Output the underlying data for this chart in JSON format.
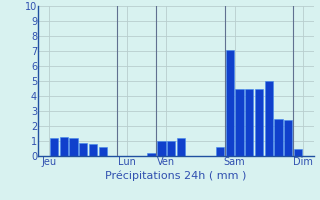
{
  "title": "Précipitations 24h ( mm )",
  "background_color": "#d8f2f0",
  "grid_color": "#b8cece",
  "bar_color": "#1040cc",
  "bar_edge_color": "#4488ee",
  "ylim": [
    0,
    10
  ],
  "yticks": [
    0,
    1,
    2,
    3,
    4,
    5,
    6,
    7,
    8,
    9,
    10
  ],
  "day_labels": [
    "Jeu",
    "Lun",
    "Ven",
    "Sam",
    "Dim"
  ],
  "day_x_positions": [
    0.5,
    8.5,
    12.5,
    19.5,
    26.5
  ],
  "vline_positions": [
    7.5,
    11.5,
    18.5,
    25.5
  ],
  "num_bars": 28,
  "bar_values": [
    0,
    1.2,
    1.3,
    1.2,
    0.9,
    0.8,
    0.6,
    0,
    0,
    0,
    0,
    0.2,
    1.0,
    1.0,
    1.2,
    0,
    0,
    0,
    0.6,
    7.1,
    4.5,
    4.5,
    4.5,
    5.0,
    2.5,
    2.4,
    0.5,
    0
  ],
  "xlabel_fontsize": 8,
  "ytick_fontsize": 7,
  "xtick_fontsize": 7,
  "spine_color": "#2050a0",
  "tick_label_color": "#3050b0"
}
